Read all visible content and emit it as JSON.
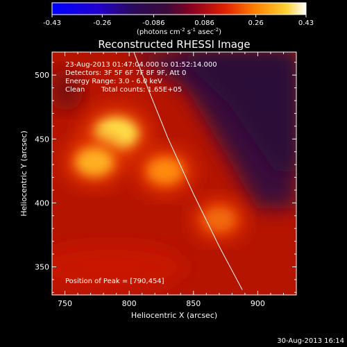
{
  "figure": {
    "footer_timestamp": "30-Aug-2013 16:14"
  },
  "colorbar": {
    "ticks": [
      "-0.43",
      "-0.26",
      "-0.086",
      "0.086",
      "0.26",
      "0.43"
    ],
    "tick_values": [
      -0.43,
      -0.26,
      -0.086,
      0.086,
      0.26,
      0.43
    ],
    "range": [
      -0.43,
      0.43
    ],
    "units_prefix": "(photons cm",
    "units_sup1": "-2",
    "units_mid": " s",
    "units_sup2": "-1",
    "units_mid2": " asec",
    "units_sup3": "-2",
    "units_suffix": ")"
  },
  "chart_data": {
    "type": "heatmap",
    "title": "Reconstructed RHESSI Image",
    "xlabel": "Heliocentric X (arcsec)",
    "ylabel": "Heliocentric Y (arcsec)",
    "xlim": [
      740,
      930
    ],
    "ylim": [
      328,
      518
    ],
    "xticks": [
      750,
      800,
      850,
      900
    ],
    "yticks": [
      350,
      400,
      450,
      500
    ],
    "annotations": [
      "23-Aug-2013 01:47:04.000 to 01:52:14.000",
      "Detectors: 3F 5F 6F 7F 8F 9F, Att 0",
      "Energy Range: 3.0 - 6.0 keV",
      "Clean",
      "Total counts: 1.65E+05"
    ],
    "peak_label": "Position of Peak = [790,454]",
    "peak_position": [
      790,
      454
    ],
    "sources": [
      {
        "x": 790,
        "y": 454,
        "intensity": 1.0
      },
      {
        "x": 773,
        "y": 432,
        "intensity": 0.78
      },
      {
        "x": 828,
        "y": 425,
        "intensity": 0.7
      },
      {
        "x": 870,
        "y": 387,
        "intensity": 0.55
      }
    ],
    "limb_curve": [
      {
        "x": 795,
        "y": 541
      },
      {
        "x": 810,
        "y": 501
      },
      {
        "x": 830,
        "y": 451
      },
      {
        "x": 850,
        "y": 407
      },
      {
        "x": 870,
        "y": 366
      },
      {
        "x": 888,
        "y": 332
      }
    ]
  }
}
